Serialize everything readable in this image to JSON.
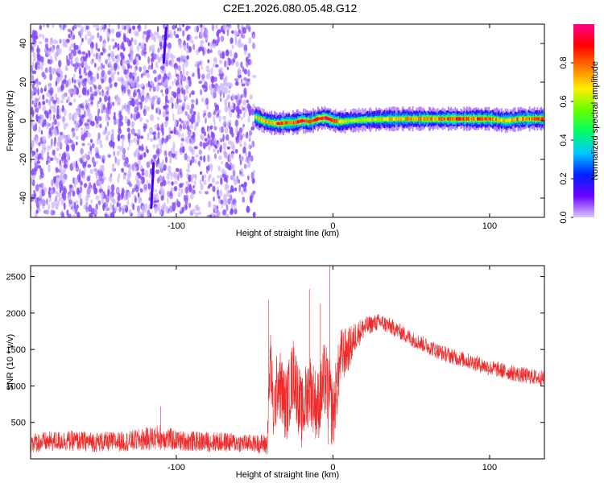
{
  "title": "C2E1.2026.080.05.48.G12",
  "colors": {
    "snr_line": "#ee2a2a",
    "noise_dots": "#8a4dff",
    "noise_dots_light": "#c9b2ff",
    "background": "#ffffff",
    "frame": "#000000"
  },
  "colorbar": {
    "label": "Normalized spectral amplitude",
    "range": [
      0.0,
      1.0
    ],
    "ticks": [
      {
        "value": 0.0,
        "label": "0.0"
      },
      {
        "value": 0.2,
        "label": "0.2"
      },
      {
        "value": 0.4,
        "label": "0.4"
      },
      {
        "value": 0.6,
        "label": "0.6"
      },
      {
        "value": 0.8,
        "label": "0.8"
      }
    ],
    "stops": [
      "#d8c8ff",
      "#6a00ff",
      "#0022ff",
      "#00c8ff",
      "#00ff66",
      "#66ff00",
      "#ffee00",
      "#ff7700",
      "#ff0000",
      "#ff0088"
    ]
  },
  "chart_data": [
    {
      "type": "heatmap",
      "title": "",
      "xlabel": "Height of straight line (km)",
      "ylabel": "Frequency (Hz)",
      "xlim": [
        -193,
        135
      ],
      "ylim": [
        -50,
        50
      ],
      "x_ticks": [
        {
          "value": -100,
          "label": "-100"
        },
        {
          "value": 0,
          "label": "0"
        },
        {
          "value": 100,
          "label": "100"
        }
      ],
      "y_ticks": [
        {
          "value": 40,
          "label": "40"
        },
        {
          "value": 20,
          "label": "20"
        },
        {
          "value": 0,
          "label": "0"
        },
        {
          "value": -20,
          "label": "-20"
        },
        {
          "value": -40,
          "label": "-40"
        }
      ],
      "noise_region_x": [
        -193,
        -50
      ],
      "noise_streaks": [
        {
          "x": -108,
          "y0": 30,
          "y1": 48
        },
        {
          "x": -116,
          "y0": -45,
          "y1": -22
        }
      ],
      "signal_band": {
        "x_start": -50,
        "x_end": 135,
        "center_x": [
          -50,
          -45,
          -40,
          -35,
          -30,
          -25,
          -20,
          -15,
          -10,
          -5,
          0,
          5,
          10,
          20,
          40,
          60,
          80,
          100,
          110,
          120,
          135
        ],
        "center_hz": [
          2,
          0,
          -1,
          -1.5,
          -1,
          -1,
          0,
          -0.5,
          1,
          1.5,
          0,
          -0.5,
          0,
          0.5,
          1,
          1,
          1,
          1,
          0,
          1,
          1
        ],
        "peak_amplitude": [
          0.6,
          0.75,
          0.7,
          0.85,
          0.8,
          0.78,
          0.9,
          0.8,
          0.85,
          0.95,
          0.85,
          0.7,
          0.6,
          0.65,
          0.7,
          0.75,
          0.82,
          0.8,
          0.7,
          0.75,
          0.8
        ],
        "halfwidth_hz": 4
      }
    },
    {
      "type": "line",
      "title": "",
      "xlabel": "Height of straight line (km)",
      "ylabel": "SNR (10 * v/v)",
      "xlim": [
        -193,
        135
      ],
      "ylim": [
        0,
        2650
      ],
      "x_ticks": [
        {
          "value": -100,
          "label": "-100"
        },
        {
          "value": 0,
          "label": "0"
        },
        {
          "value": 100,
          "label": "100"
        }
      ],
      "y_ticks": [
        {
          "value": 2500,
          "label": "2500"
        },
        {
          "value": 2000,
          "label": "2000"
        },
        {
          "value": 1500,
          "label": "1500"
        },
        {
          "value": 1000,
          "label": "1000"
        },
        {
          "value": 500,
          "label": "500"
        }
      ],
      "envelope_x": [
        -193,
        -170,
        -150,
        -130,
        -110,
        -100,
        -90,
        -70,
        -50,
        -42,
        -40,
        -38,
        -35,
        -30,
        -25,
        -20,
        -15,
        -10,
        -5,
        0,
        5,
        10,
        15,
        20,
        25,
        30,
        35,
        40,
        50,
        60,
        70,
        80,
        90,
        100,
        110,
        120,
        135
      ],
      "envelope_mean": [
        220,
        250,
        230,
        240,
        300,
        250,
        240,
        230,
        210,
        200,
        1400,
        600,
        1100,
        700,
        1200,
        600,
        1000,
        700,
        1100,
        600,
        1400,
        1500,
        1700,
        1800,
        1850,
        1880,
        1830,
        1780,
        1650,
        1550,
        1450,
        1380,
        1320,
        1250,
        1200,
        1150,
        1100
      ],
      "envelope_spread": [
        140,
        140,
        140,
        140,
        180,
        140,
        140,
        140,
        120,
        150,
        500,
        400,
        500,
        500,
        500,
        500,
        500,
        500,
        550,
        500,
        400,
        300,
        200,
        150,
        120,
        120,
        120,
        110,
        110,
        110,
        110,
        110,
        110,
        110,
        110,
        110,
        110
      ],
      "spikes": [
        {
          "x": -41,
          "value": 2180
        },
        {
          "x": -15,
          "value": 2330
        },
        {
          "x": -8,
          "value": 2130
        },
        {
          "x": -2,
          "value": 2650
        },
        {
          "x": -3,
          "value": 200
        },
        {
          "x": -110,
          "value": 720
        }
      ]
    }
  ]
}
